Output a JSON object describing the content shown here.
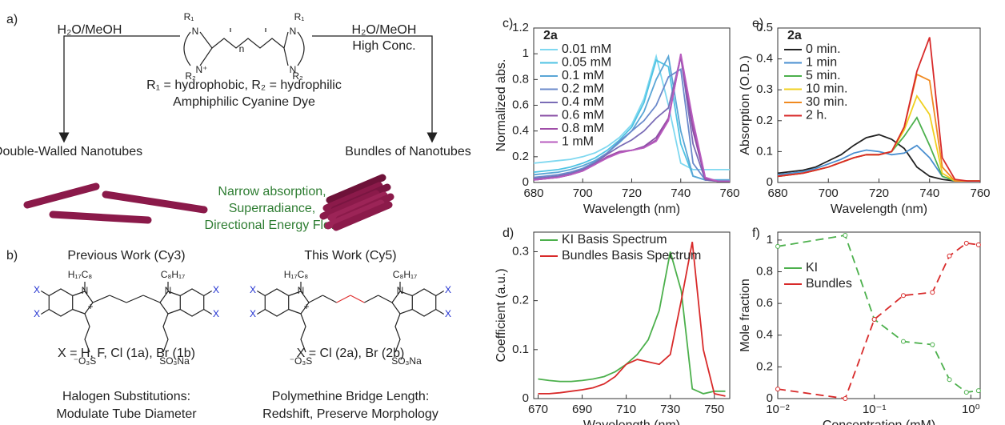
{
  "diagram": {
    "label_a": "a)",
    "label_b": "b)",
    "left_condition": "H₂O/MeOH",
    "right_condition": "H₂O/MeOH",
    "right_condition_2": "High Conc.",
    "dye": {
      "atoms": [
        "R₁",
        "N",
        "N⁺",
        "R₂",
        "n",
        "R₁",
        "N",
        "N",
        "R₂"
      ],
      "substituents": "R₁ = hydrophobic, R₂ = hydrophilic",
      "name": "Amphiphilic Cyanine Dye"
    },
    "left_product": "Double-Walled Nanotubes",
    "right_product": "Bundles of Nanotubes",
    "properties": [
      "Narrow absorption,",
      "Superradiance,",
      "Directional Energy Flow"
    ],
    "structures": [
      {
        "title": "Previous Work (Cy3)",
        "atoms": [
          "H₁₇C₈",
          "N",
          "+",
          "N",
          "C₈H₁₇",
          "X",
          "X",
          "X",
          "X",
          "⁻O₃S",
          "SO₃Na"
        ],
        "caption": "X = H, F, Cl (1a), Br (1b)",
        "notes": [
          "Halogen Substitutions:",
          "Modulate Tube Diameter"
        ]
      },
      {
        "title": "This Work (Cy5)",
        "atoms": [
          "H₁₇C₈",
          "N",
          "+",
          "N",
          "C₈H₁₇",
          "X",
          "X",
          "X",
          "X",
          "⁻O₃S",
          "SO₃Na"
        ],
        "caption": "X = Cl (2a), Br (2b)",
        "notes": [
          "Polymethine Bridge Length:",
          "Redshift, Preserve Morphology"
        ]
      }
    ]
  },
  "chart_data": [
    {
      "type": "line",
      "label": "c)",
      "xlabel": "Wavelength (nm)",
      "ylabel": "Normalized abs.",
      "legend": "upper left",
      "legend_title": "2a",
      "x": [
        680,
        685,
        690,
        695,
        700,
        705,
        710,
        715,
        720,
        725,
        730,
        735,
        740,
        745,
        750,
        755,
        760
      ],
      "xlim": [
        680,
        760
      ],
      "xticks": [
        680,
        700,
        720,
        740,
        760
      ],
      "ylim": [
        0,
        1.2
      ],
      "yticks": [
        0,
        0.2,
        0.4,
        0.6,
        0.8,
        1,
        1.2
      ],
      "series": [
        {
          "name": "0.01 mM",
          "color": "#7fd8f0",
          "values": [
            0.15,
            0.16,
            0.17,
            0.18,
            0.2,
            0.23,
            0.28,
            0.35,
            0.45,
            0.65,
            0.98,
            0.6,
            0.15,
            0.1,
            0.1,
            0.1,
            0.1
          ]
        },
        {
          "name": "0.05 mM",
          "color": "#4fc3e3",
          "values": [
            0.08,
            0.09,
            0.1,
            0.12,
            0.15,
            0.19,
            0.25,
            0.33,
            0.43,
            0.62,
            0.95,
            0.9,
            0.3,
            0.05,
            0.02,
            0.02,
            0.02
          ]
        },
        {
          "name": "0.1 mM",
          "color": "#5aa6d6",
          "values": [
            0.06,
            0.07,
            0.08,
            0.1,
            0.13,
            0.17,
            0.23,
            0.31,
            0.4,
            0.55,
            0.8,
            0.98,
            0.4,
            0.05,
            0.02,
            0.02,
            0.02
          ]
        },
        {
          "name": "0.2 mM",
          "color": "#6b8acb",
          "values": [
            0.04,
            0.05,
            0.06,
            0.08,
            0.11,
            0.16,
            0.23,
            0.32,
            0.4,
            0.48,
            0.6,
            0.82,
            0.88,
            0.15,
            0.02,
            0.01,
            0.01
          ]
        },
        {
          "name": "0.4 mM",
          "color": "#7a6cb6",
          "values": [
            0.03,
            0.04,
            0.05,
            0.07,
            0.1,
            0.15,
            0.22,
            0.28,
            0.33,
            0.4,
            0.5,
            0.58,
            0.98,
            0.3,
            0.02,
            0.01,
            0.01
          ]
        },
        {
          "name": "0.6 mM",
          "color": "#8a4fa6",
          "values": [
            0.02,
            0.03,
            0.04,
            0.06,
            0.09,
            0.14,
            0.2,
            0.24,
            0.25,
            0.28,
            0.35,
            0.5,
            0.98,
            0.4,
            0.03,
            0.01,
            0.01
          ]
        },
        {
          "name": "0.8 mM",
          "color": "#a04ea8",
          "values": [
            0.02,
            0.03,
            0.04,
            0.06,
            0.09,
            0.14,
            0.2,
            0.24,
            0.25,
            0.27,
            0.33,
            0.5,
            0.99,
            0.45,
            0.03,
            0.01,
            0.01
          ]
        },
        {
          "name": "1 mM",
          "color": "#b85cbf",
          "values": [
            0.02,
            0.03,
            0.04,
            0.06,
            0.09,
            0.14,
            0.19,
            0.23,
            0.25,
            0.27,
            0.32,
            0.48,
            1,
            0.48,
            0.04,
            0.01,
            0.01
          ]
        }
      ]
    },
    {
      "type": "line",
      "label": "e)",
      "xlabel": "Wavelength (nm)",
      "ylabel": "Absorption (O.D.)",
      "legend": "upper left",
      "legend_title": "2a",
      "x": [
        680,
        685,
        690,
        695,
        700,
        705,
        710,
        715,
        720,
        725,
        730,
        735,
        740,
        745,
        750,
        755,
        760
      ],
      "xlim": [
        680,
        760
      ],
      "xticks": [
        680,
        700,
        720,
        740,
        760
      ],
      "ylim": [
        0,
        0.5
      ],
      "yticks": [
        0,
        0.1,
        0.2,
        0.3,
        0.4,
        0.5
      ],
      "series": [
        {
          "name": "0 min.",
          "color": "#222222",
          "values": [
            0.03,
            0.035,
            0.04,
            0.05,
            0.07,
            0.09,
            0.12,
            0.145,
            0.155,
            0.14,
            0.11,
            0.05,
            0.02,
            0.01,
            0.005,
            0.005,
            0.005
          ]
        },
        {
          "name": "1 min",
          "color": "#4a8fd0",
          "values": [
            0.025,
            0.03,
            0.035,
            0.045,
            0.06,
            0.075,
            0.095,
            0.105,
            0.1,
            0.09,
            0.095,
            0.12,
            0.08,
            0.02,
            0.005,
            0.005,
            0.005
          ]
        },
        {
          "name": "5 min.",
          "color": "#4cb04c",
          "values": [
            0.02,
            0.025,
            0.03,
            0.04,
            0.05,
            0.065,
            0.08,
            0.09,
            0.09,
            0.1,
            0.15,
            0.21,
            0.12,
            0.02,
            0.005,
            0.005,
            0.005
          ]
        },
        {
          "name": "10 min.",
          "color": "#f0d020",
          "values": [
            0.02,
            0.025,
            0.03,
            0.04,
            0.05,
            0.065,
            0.08,
            0.09,
            0.09,
            0.1,
            0.17,
            0.28,
            0.22,
            0.03,
            0.005,
            0.005,
            0.005
          ]
        },
        {
          "name": "30 min.",
          "color": "#f08a20",
          "values": [
            0.02,
            0.025,
            0.03,
            0.04,
            0.05,
            0.065,
            0.08,
            0.09,
            0.09,
            0.1,
            0.18,
            0.35,
            0.33,
            0.05,
            0.005,
            0.005,
            0.005
          ]
        },
        {
          "name": "2 h.",
          "color": "#d82a2a",
          "values": [
            0.02,
            0.025,
            0.03,
            0.04,
            0.05,
            0.065,
            0.08,
            0.09,
            0.09,
            0.1,
            0.18,
            0.36,
            0.47,
            0.08,
            0.01,
            0.005,
            0.005
          ]
        }
      ]
    },
    {
      "type": "line",
      "label": "d)",
      "xlabel": "Wavelength (nm)",
      "ylabel": "Coefficient (a.u.)",
      "legend": "upper left",
      "x": [
        670,
        675,
        680,
        685,
        690,
        695,
        700,
        705,
        710,
        715,
        720,
        725,
        730,
        735,
        740,
        745,
        750,
        755
      ],
      "xlim": [
        668,
        757
      ],
      "xticks": [
        670,
        690,
        710,
        730,
        750
      ],
      "ylim": [
        0,
        0.34
      ],
      "yticks": [
        0,
        0.1,
        0.2,
        0.3
      ],
      "series": [
        {
          "name": "KI Basis Spectrum",
          "color": "#4cb04c",
          "values": [
            0.04,
            0.037,
            0.035,
            0.035,
            0.037,
            0.04,
            0.045,
            0.055,
            0.07,
            0.09,
            0.12,
            0.18,
            0.3,
            0.22,
            0.02,
            0.01,
            0.015,
            0.015
          ]
        },
        {
          "name": "Bundles Basis Spectrum",
          "color": "#d82a2a",
          "values": [
            0.01,
            0.01,
            0.012,
            0.015,
            0.018,
            0.022,
            0.03,
            0.045,
            0.07,
            0.08,
            0.075,
            0.07,
            0.09,
            0.2,
            0.32,
            0.1,
            0.01,
            0.005
          ]
        }
      ]
    },
    {
      "type": "line",
      "label": "f)",
      "xlabel": "Concentration (mM)",
      "ylabel": "Mole fraction",
      "legend": "center left",
      "xlog": true,
      "dashed": true,
      "markers": true,
      "x": [
        0.01,
        0.05,
        0.1,
        0.2,
        0.4,
        0.6,
        0.9,
        1.2
      ],
      "xlim": [
        0.01,
        1.25
      ],
      "xticks": [
        {
          "value": 0.01,
          "label": "10⁻²"
        },
        {
          "value": 0.1,
          "label": "10⁻¹"
        },
        {
          "value": 1,
          "label": "10⁰"
        }
      ],
      "ylim": [
        0,
        1.05
      ],
      "yticks": [
        0,
        0.2,
        0.4,
        0.6,
        0.8,
        1
      ],
      "series": [
        {
          "name": "KI",
          "color": "#4cb04c",
          "values": [
            0.96,
            1.03,
            0.5,
            0.36,
            0.34,
            0.12,
            0.04,
            0.05
          ]
        },
        {
          "name": "Bundles",
          "color": "#d82a2a",
          "values": [
            0.06,
            0,
            0.5,
            0.65,
            0.67,
            0.9,
            0.98,
            0.97
          ]
        }
      ]
    }
  ]
}
